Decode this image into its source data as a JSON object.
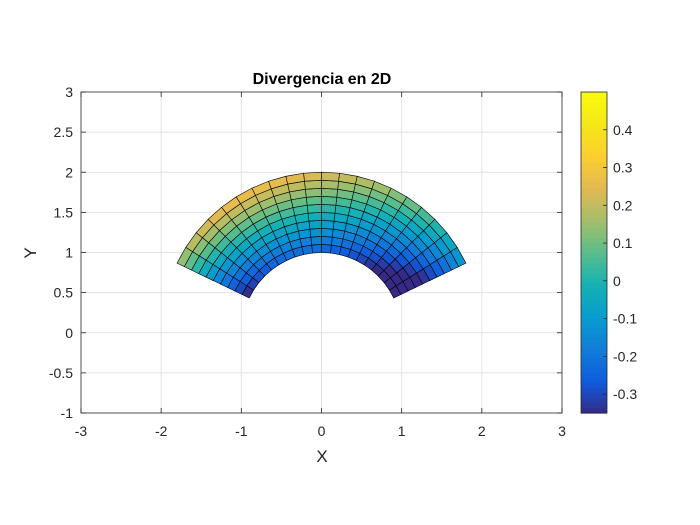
{
  "chart_data": {
    "type": "heatmap",
    "title": "Divergencia en 2D",
    "xlabel": "X",
    "ylabel": "Y",
    "xlim": [
      -3,
      3
    ],
    "ylim": [
      -1,
      3
    ],
    "grid": true,
    "xticks": [
      -3,
      -2,
      -1,
      0,
      1,
      2,
      3
    ],
    "yticks": [
      -1,
      -0.5,
      0,
      0.5,
      1,
      1.5,
      2,
      2.5,
      3
    ],
    "xtick_labels": [
      "-3",
      "-2",
      "-1",
      "0",
      "1",
      "2",
      "3"
    ],
    "ytick_labels": [
      "-1",
      "-0.5",
      "0",
      "0.5",
      "1",
      "1.5",
      "2",
      "2.5",
      "3"
    ],
    "mesh": {
      "domain": "annular sector",
      "r_range": [
        1,
        2
      ],
      "theta_range_deg": [
        25.7,
        154.3
      ],
      "n_r": 10,
      "n_theta": 20,
      "values_description": "divergence on polar cells"
    },
    "colorbar": {
      "clim": [
        -0.35,
        0.5
      ],
      "ticks": [
        -0.3,
        -0.2,
        -0.1,
        0,
        0.1,
        0.2,
        0.3,
        0.4
      ],
      "tick_labels": [
        "-0.3",
        "-0.2",
        "-0.1",
        "0",
        "0.1",
        "0.2",
        "0.3",
        "0.4"
      ],
      "colormap": "parula",
      "location": "right"
    }
  }
}
